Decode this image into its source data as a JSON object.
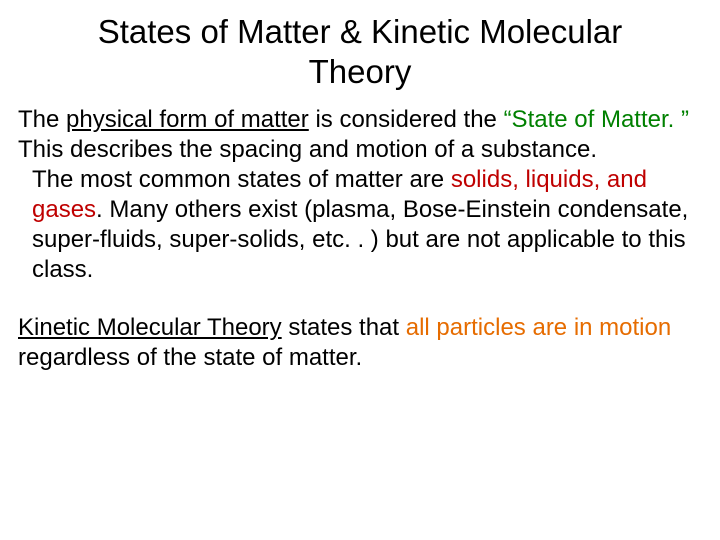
{
  "title": "States of Matter & Kinetic Molecular Theory",
  "p1": {
    "t1": "The ",
    "t2": "physical form of matter",
    "t3": " is considered the ",
    "t4": "“State of Matter. ”",
    "t5": " This describes the spacing and motion of a substance."
  },
  "p2": {
    "t1": "The most common states of matter are ",
    "t2": "solids, liquids, and gases",
    "t3": ". Many others exist (plasma, Bose-Einstein condensate, super-fluids, super-solids, etc. . ) but are not applicable to this class."
  },
  "p3": {
    "t1": "Kinetic Molecular Theory",
    "t2": " states that ",
    "t3": "all particles are in motion",
    "t4": " regardless of the state of matter."
  },
  "colors": {
    "green": "#008000",
    "red": "#bf0000",
    "orange": "#e66c00",
    "text": "#000000",
    "background": "#ffffff"
  },
  "fontsize": {
    "title": 33,
    "body": 24
  }
}
